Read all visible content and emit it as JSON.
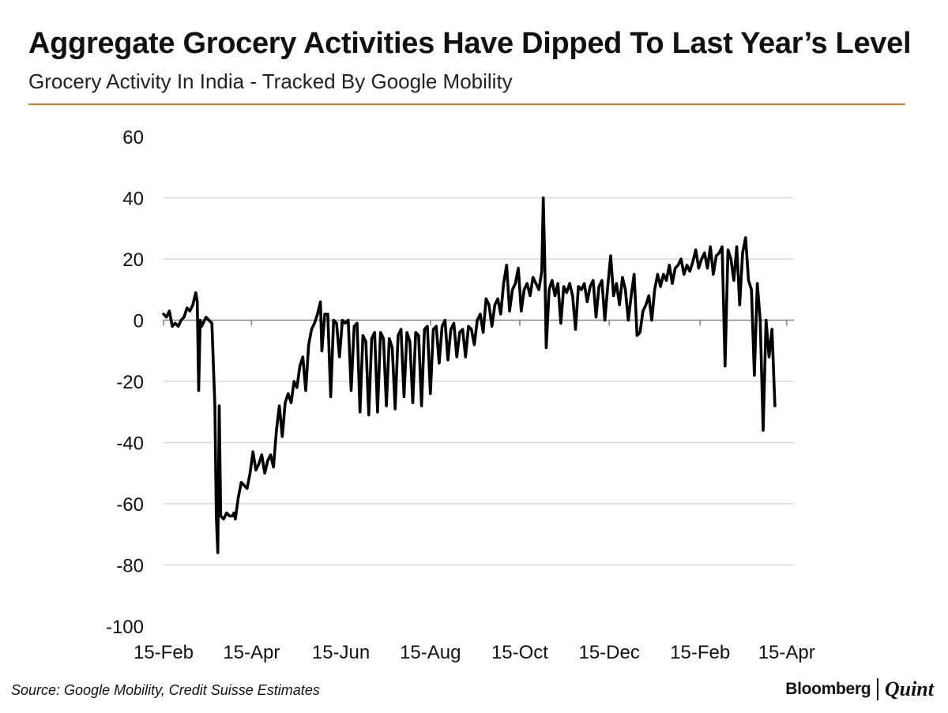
{
  "header": {
    "title": "Aggregate Grocery Activities Have Dipped To Last Year’s Level",
    "subtitle": "Grocery Activity In India - Tracked By Google Mobility"
  },
  "footer": {
    "source": "Source: Google Mobility, Credit Suisse Estimates",
    "logo_brand": "Bloomberg",
    "logo_sub": "Quint"
  },
  "colors": {
    "accent_rule": "#e07b2e",
    "line": "#000000",
    "grid": "#d9d9d9",
    "zero_axis": "#888888"
  },
  "chart_data": {
    "type": "line",
    "title": "Aggregate Grocery Activities Have Dipped To Last Year’s Level",
    "subtitle": "Grocery Activity In India - Tracked By Google Mobility",
    "xlabel": "",
    "ylabel": "",
    "ylim": [
      -100,
      60
    ],
    "yticks": [
      60,
      40,
      20,
      0,
      -20,
      -40,
      -60,
      -80,
      -100
    ],
    "xlim": [
      "2020-02-15",
      "2021-04-20"
    ],
    "xtick_labels": [
      "15-Feb",
      "15-Apr",
      "15-Jun",
      "15-Aug",
      "15-Oct",
      "15-Dec",
      "15-Feb",
      "15-Apr"
    ],
    "xtick_dates": [
      "2020-02-15",
      "2020-04-15",
      "2020-06-15",
      "2020-08-15",
      "2020-10-15",
      "2020-12-15",
      "2021-02-15",
      "2021-04-15"
    ],
    "grid": "horizontal",
    "legend": "none",
    "series": [
      {
        "points": [
          [
            "2020-02-15",
            2
          ],
          [
            "2020-02-17",
            1
          ],
          [
            "2020-02-19",
            3
          ],
          [
            "2020-02-21",
            -2
          ],
          [
            "2020-02-23",
            -1
          ],
          [
            "2020-02-25",
            -2
          ],
          [
            "2020-02-27",
            0
          ],
          [
            "2020-02-29",
            1
          ],
          [
            "2020-03-02",
            4
          ],
          [
            "2020-03-04",
            3
          ],
          [
            "2020-03-06",
            5
          ],
          [
            "2020-03-08",
            9
          ],
          [
            "2020-03-09",
            6
          ],
          [
            "2020-03-10",
            -23
          ],
          [
            "2020-03-11",
            0
          ],
          [
            "2020-03-12",
            -2
          ],
          [
            "2020-03-13",
            -1
          ],
          [
            "2020-03-15",
            1
          ],
          [
            "2020-03-17",
            0
          ],
          [
            "2020-03-19",
            -1
          ],
          [
            "2020-03-21",
            -28
          ],
          [
            "2020-03-22",
            -64
          ],
          [
            "2020-03-23",
            -76
          ],
          [
            "2020-03-24",
            -28
          ],
          [
            "2020-03-25",
            -64
          ],
          [
            "2020-03-27",
            -65
          ],
          [
            "2020-03-29",
            -63
          ],
          [
            "2020-03-31",
            -64
          ],
          [
            "2020-04-02",
            -64
          ],
          [
            "2020-04-03",
            -63
          ],
          [
            "2020-04-04",
            -65
          ],
          [
            "2020-04-06",
            -58
          ],
          [
            "2020-04-08",
            -53
          ],
          [
            "2020-04-10",
            -54
          ],
          [
            "2020-04-12",
            -55
          ],
          [
            "2020-04-14",
            -50
          ],
          [
            "2020-04-16",
            -43
          ],
          [
            "2020-04-18",
            -49
          ],
          [
            "2020-04-20",
            -47
          ],
          [
            "2020-04-22",
            -44
          ],
          [
            "2020-04-24",
            -50
          ],
          [
            "2020-04-26",
            -46
          ],
          [
            "2020-04-28",
            -44
          ],
          [
            "2020-04-30",
            -48
          ],
          [
            "2020-05-02",
            -36
          ],
          [
            "2020-05-04",
            -28
          ],
          [
            "2020-05-06",
            -38
          ],
          [
            "2020-05-08",
            -27
          ],
          [
            "2020-05-10",
            -24
          ],
          [
            "2020-05-12",
            -27
          ],
          [
            "2020-05-14",
            -20
          ],
          [
            "2020-05-16",
            -22
          ],
          [
            "2020-05-18",
            -15
          ],
          [
            "2020-05-20",
            -12
          ],
          [
            "2020-05-22",
            -23
          ],
          [
            "2020-05-24",
            -8
          ],
          [
            "2020-05-26",
            -3
          ],
          [
            "2020-05-28",
            -1
          ],
          [
            "2020-05-30",
            2
          ],
          [
            "2020-06-01",
            6
          ],
          [
            "2020-06-02",
            -10
          ],
          [
            "2020-06-04",
            2
          ],
          [
            "2020-06-06",
            2
          ],
          [
            "2020-06-08",
            -25
          ],
          [
            "2020-06-10",
            0
          ],
          [
            "2020-06-12",
            -1
          ],
          [
            "2020-06-14",
            -12
          ],
          [
            "2020-06-16",
            0
          ],
          [
            "2020-06-18",
            -1
          ],
          [
            "2020-06-20",
            0
          ],
          [
            "2020-06-22",
            -23
          ],
          [
            "2020-06-24",
            -2
          ],
          [
            "2020-06-26",
            -1
          ],
          [
            "2020-06-28",
            -30
          ],
          [
            "2020-06-30",
            -5
          ],
          [
            "2020-07-02",
            -7
          ],
          [
            "2020-07-04",
            -31
          ],
          [
            "2020-07-06",
            -6
          ],
          [
            "2020-07-08",
            -4
          ],
          [
            "2020-07-10",
            -30
          ],
          [
            "2020-07-12",
            -4
          ],
          [
            "2020-07-14",
            -6
          ],
          [
            "2020-07-16",
            -28
          ],
          [
            "2020-07-18",
            -6
          ],
          [
            "2020-07-20",
            -9
          ],
          [
            "2020-07-22",
            -29
          ],
          [
            "2020-07-24",
            -5
          ],
          [
            "2020-07-26",
            -3
          ],
          [
            "2020-07-28",
            -25
          ],
          [
            "2020-07-30",
            -4
          ],
          [
            "2020-08-01",
            -7
          ],
          [
            "2020-08-03",
            -27
          ],
          [
            "2020-08-05",
            -4
          ],
          [
            "2020-08-07",
            -5
          ],
          [
            "2020-08-09",
            -28
          ],
          [
            "2020-08-11",
            -3
          ],
          [
            "2020-08-13",
            -2
          ],
          [
            "2020-08-15",
            -24
          ],
          [
            "2020-08-17",
            -3
          ],
          [
            "2020-08-19",
            -2
          ],
          [
            "2020-08-21",
            -14
          ],
          [
            "2020-08-23",
            -2
          ],
          [
            "2020-08-25",
            0
          ],
          [
            "2020-08-27",
            -13
          ],
          [
            "2020-08-29",
            -3
          ],
          [
            "2020-08-31",
            -1
          ],
          [
            "2020-09-02",
            -12
          ],
          [
            "2020-09-04",
            -4
          ],
          [
            "2020-09-06",
            -3
          ],
          [
            "2020-09-08",
            -12
          ],
          [
            "2020-09-10",
            -2
          ],
          [
            "2020-09-12",
            -3
          ],
          [
            "2020-09-14",
            -8
          ],
          [
            "2020-09-16",
            0
          ],
          [
            "2020-09-18",
            2
          ],
          [
            "2020-09-20",
            -4
          ],
          [
            "2020-09-22",
            7
          ],
          [
            "2020-09-24",
            5
          ],
          [
            "2020-09-26",
            -2
          ],
          [
            "2020-09-28",
            5
          ],
          [
            "2020-09-30",
            7
          ],
          [
            "2020-10-02",
            2
          ],
          [
            "2020-10-04",
            12
          ],
          [
            "2020-10-06",
            18
          ],
          [
            "2020-10-08",
            3
          ],
          [
            "2020-10-10",
            10
          ],
          [
            "2020-10-12",
            12
          ],
          [
            "2020-10-14",
            17
          ],
          [
            "2020-10-16",
            3
          ],
          [
            "2020-10-18",
            10
          ],
          [
            "2020-10-20",
            12
          ],
          [
            "2020-10-22",
            8
          ],
          [
            "2020-10-24",
            14
          ],
          [
            "2020-10-26",
            12
          ],
          [
            "2020-10-28",
            10
          ],
          [
            "2020-10-30",
            16
          ],
          [
            "2020-10-31",
            40
          ],
          [
            "2020-11-01",
            20
          ],
          [
            "2020-11-02",
            -9
          ],
          [
            "2020-11-04",
            10
          ],
          [
            "2020-11-06",
            13
          ],
          [
            "2020-11-08",
            8
          ],
          [
            "2020-11-10",
            12
          ],
          [
            "2020-11-12",
            -1
          ],
          [
            "2020-11-14",
            11
          ],
          [
            "2020-11-16",
            9
          ],
          [
            "2020-11-18",
            12
          ],
          [
            "2020-11-20",
            8
          ],
          [
            "2020-11-22",
            -3
          ],
          [
            "2020-11-24",
            11
          ],
          [
            "2020-11-26",
            10
          ],
          [
            "2020-11-28",
            12
          ],
          [
            "2020-11-30",
            6
          ],
          [
            "2020-12-02",
            11
          ],
          [
            "2020-12-04",
            13
          ],
          [
            "2020-12-06",
            1
          ],
          [
            "2020-12-08",
            11
          ],
          [
            "2020-12-10",
            13
          ],
          [
            "2020-12-12",
            0
          ],
          [
            "2020-12-14",
            11
          ],
          [
            "2020-12-16",
            21
          ],
          [
            "2020-12-18",
            8
          ],
          [
            "2020-12-20",
            12
          ],
          [
            "2020-12-22",
            5
          ],
          [
            "2020-12-24",
            14
          ],
          [
            "2020-12-26",
            10
          ],
          [
            "2020-12-28",
            0
          ],
          [
            "2020-12-30",
            8
          ],
          [
            "2021-01-01",
            15
          ],
          [
            "2021-01-03",
            -5
          ],
          [
            "2021-01-05",
            -4
          ],
          [
            "2021-01-07",
            3
          ],
          [
            "2021-01-09",
            5
          ],
          [
            "2021-01-11",
            8
          ],
          [
            "2021-01-13",
            0
          ],
          [
            "2021-01-15",
            10
          ],
          [
            "2021-01-17",
            15
          ],
          [
            "2021-01-19",
            11
          ],
          [
            "2021-01-21",
            15
          ],
          [
            "2021-01-23",
            13
          ],
          [
            "2021-01-25",
            18
          ],
          [
            "2021-01-27",
            12
          ],
          [
            "2021-01-29",
            17
          ],
          [
            "2021-01-31",
            18
          ],
          [
            "2021-02-02",
            20
          ],
          [
            "2021-02-04",
            15
          ],
          [
            "2021-02-06",
            18
          ],
          [
            "2021-02-08",
            16
          ],
          [
            "2021-02-10",
            19
          ],
          [
            "2021-02-12",
            23
          ],
          [
            "2021-02-14",
            17
          ],
          [
            "2021-02-16",
            20
          ],
          [
            "2021-02-18",
            22
          ],
          [
            "2021-02-20",
            17
          ],
          [
            "2021-02-22",
            24
          ],
          [
            "2021-02-24",
            15
          ],
          [
            "2021-02-26",
            21
          ],
          [
            "2021-02-28",
            22
          ],
          [
            "2021-03-02",
            24
          ],
          [
            "2021-03-04",
            -15
          ],
          [
            "2021-03-06",
            23
          ],
          [
            "2021-03-08",
            20
          ],
          [
            "2021-03-10",
            13
          ],
          [
            "2021-03-12",
            24
          ],
          [
            "2021-03-14",
            5
          ],
          [
            "2021-03-16",
            22
          ],
          [
            "2021-03-18",
            27
          ],
          [
            "2021-03-20",
            13
          ],
          [
            "2021-03-22",
            10
          ],
          [
            "2021-03-24",
            -18
          ],
          [
            "2021-03-26",
            12
          ],
          [
            "2021-03-28",
            0
          ],
          [
            "2021-03-30",
            -36
          ],
          [
            "2021-04-01",
            0
          ],
          [
            "2021-04-03",
            -12
          ],
          [
            "2021-04-05",
            -3
          ],
          [
            "2021-04-07",
            -28
          ]
        ]
      }
    ]
  }
}
